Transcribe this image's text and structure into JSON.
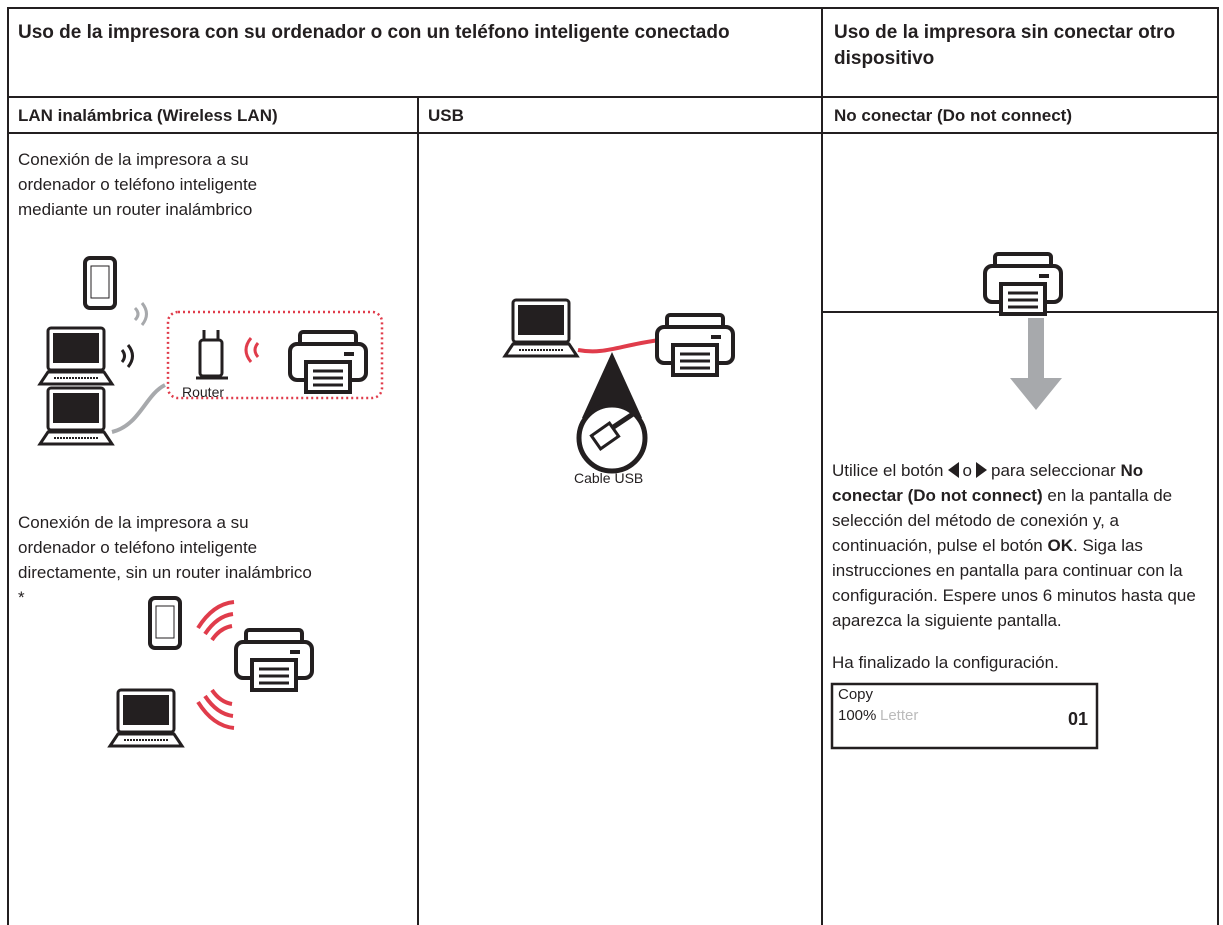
{
  "header": {
    "connected": "Uso de la impresora con su ordenador o con un teléfono inteligente conectado",
    "standalone": "Uso de la impresora sin conectar otro dispositivo"
  },
  "columns": [
    "LAN inalámbrica (Wireless LAN)",
    "USB",
    "No conectar (Do not connect)"
  ],
  "wireless": {
    "intro": "Conexión de la impresora a su ordenador o teléfono inteligente mediante un router inalámbrico",
    "router_label": "Router",
    "direct": "Conexión de la impresora a su ordenador o teléfono inteligente directamente, sin un router inalámbrico *"
  },
  "usb": {
    "cable_label": "Cable USB"
  },
  "no_connect": {
    "instruction": {
      "part1": "Utilice el botón",
      "part2": "o",
      "part3": "para seleccionar",
      "bold1": "No conectar (Do not connect)",
      "part4": "en la pantalla de selección del método de conexión y, a continuación, pulse el botón",
      "bold2": "OK",
      "part5": ". Siga las instrucciones en pantalla para continuar con la configuración. Espere unos 6 minutos hasta que aparezca la siguiente pantalla."
    },
    "done": "Ha finalizado la configuración.",
    "screen": {
      "mode": "Copy",
      "zoom": "100%",
      "paper": "Letter",
      "copies": "01"
    }
  }
}
